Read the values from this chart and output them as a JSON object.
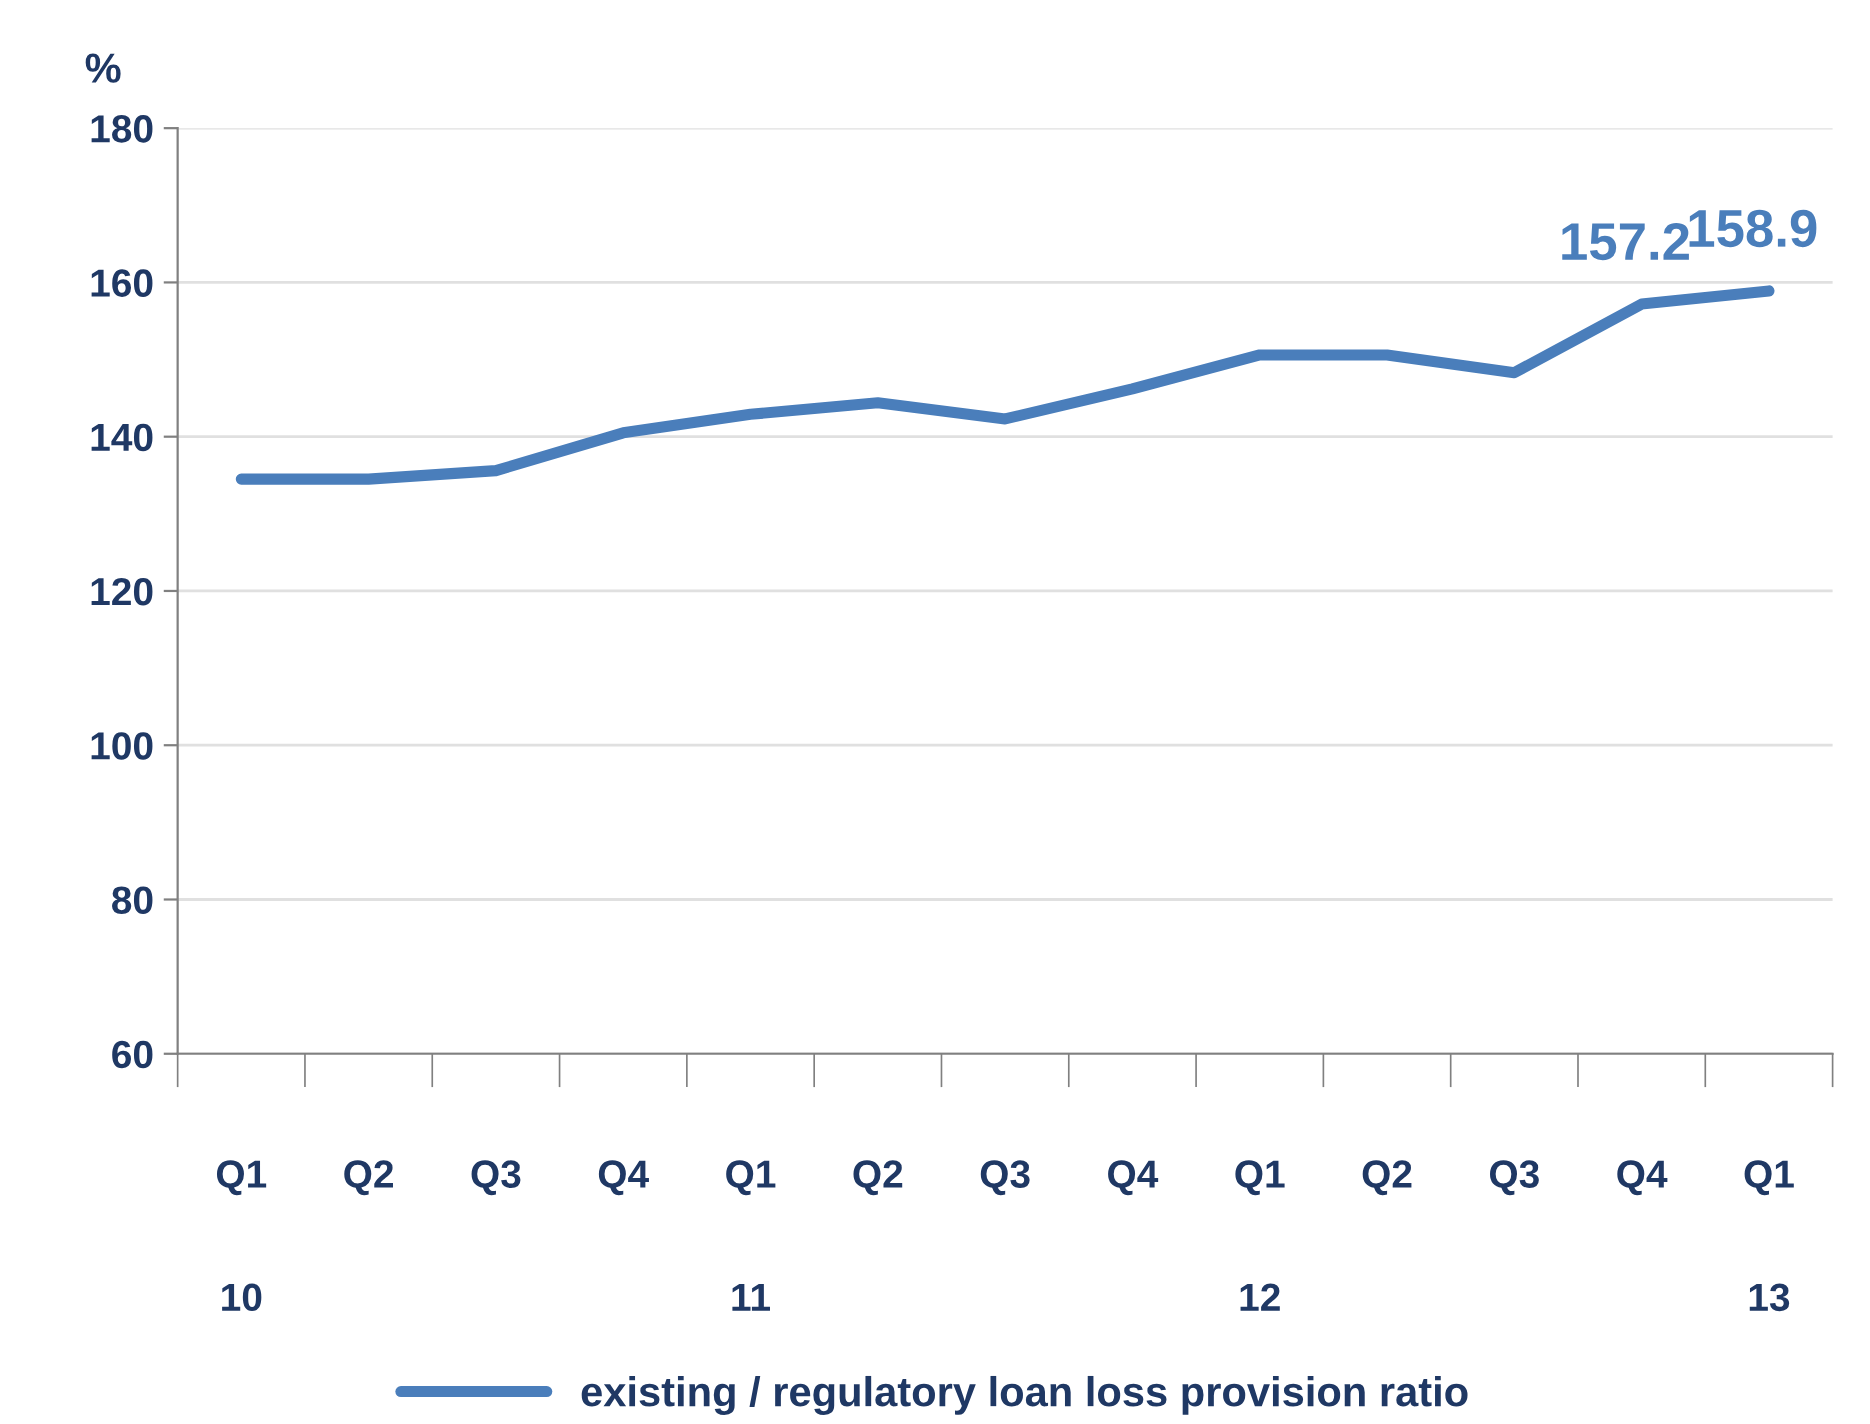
{
  "chart_data": {
    "type": "line",
    "ylabel": "%",
    "categories": [
      "Q1\n\n10",
      "Q2",
      "Q3",
      "Q4",
      "Q1\n\n11",
      "Q2",
      "Q3",
      "Q4",
      "Q1\n\n12",
      "Q2",
      "Q3",
      "Q4",
      "Q1\n\n13"
    ],
    "series": [
      {
        "name": "existing / regulatory loan loss provision ratio",
        "color": "#4a7ebb",
        "values": [
          134.5,
          134.5,
          135.6,
          140.5,
          142.9,
          144.4,
          142.3,
          146.2,
          150.6,
          150.6,
          148.3,
          157.2,
          158.9
        ],
        "value_labels": [
          null,
          null,
          null,
          null,
          null,
          null,
          null,
          null,
          null,
          null,
          null,
          "157.2",
          "158.9"
        ]
      }
    ],
    "ylim": [
      60,
      180
    ],
    "yticks": [
      60,
      80,
      100,
      120,
      140,
      160,
      180
    ],
    "grid": "y",
    "legend": "bottom",
    "marker": "none",
    "line_style": "solid"
  }
}
